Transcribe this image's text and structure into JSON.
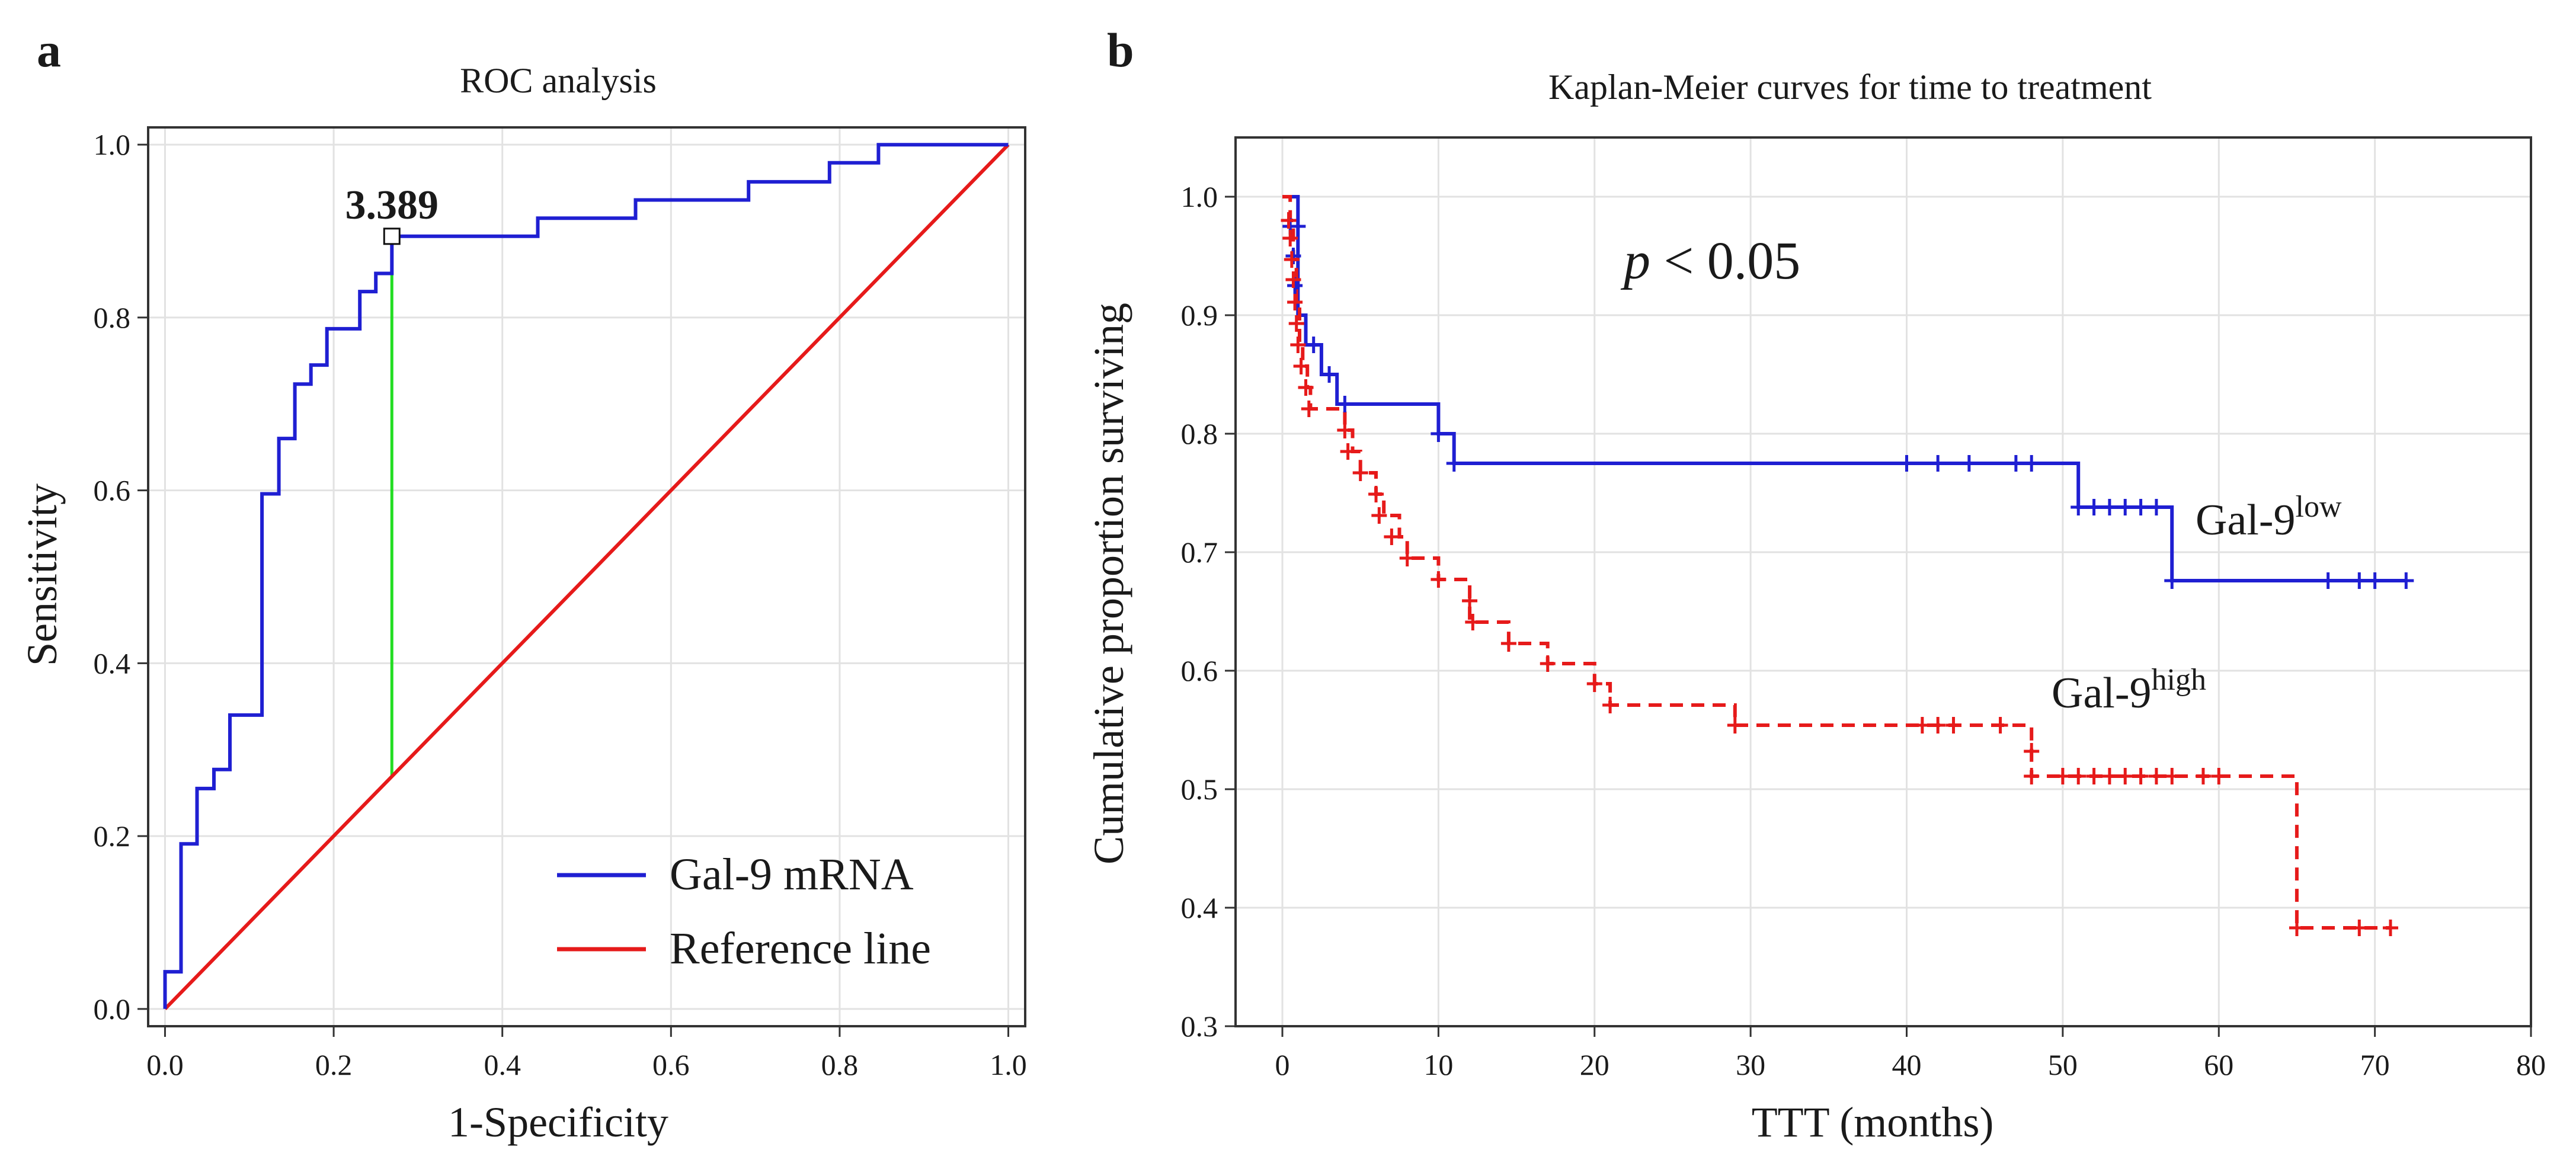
{
  "chart_data": [
    {
      "panel": "a",
      "type": "line",
      "title": "ROC analysis",
      "xlabel": "1-Specificity",
      "ylabel": "Sensitivity",
      "xlim": [
        -0.02,
        1.02
      ],
      "ylim": [
        -0.02,
        1.02
      ],
      "xticks": [
        "0.0",
        "0.2",
        "0.4",
        "0.6",
        "0.8",
        "1.0"
      ],
      "yticks": [
        "0.0",
        "0.2",
        "0.4",
        "0.6",
        "0.8",
        "1.0"
      ],
      "grid": true,
      "legend_position": "bottom-right",
      "series": [
        {
          "name": "Gal-9 mRNA",
          "color": "#1f1fd2",
          "style": "step",
          "x": [
            0.0,
            0.0,
            0.019,
            0.019,
            0.038,
            0.038,
            0.058,
            0.058,
            0.077,
            0.077,
            0.096,
            0.115,
            0.115,
            0.135,
            0.135,
            0.154,
            0.154,
            0.173,
            0.173,
            0.192,
            0.192,
            0.212,
            0.231,
            0.231,
            0.25,
            0.25,
            0.269,
            0.269,
            0.288,
            0.442,
            0.442,
            0.462,
            0.558,
            0.558,
            0.577,
            0.692,
            0.692,
            0.712,
            0.788,
            0.788,
            0.808,
            0.846,
            0.846,
            0.865,
            1.0
          ],
          "y": [
            0.0,
            0.043,
            0.043,
            0.191,
            0.191,
            0.255,
            0.255,
            0.277,
            0.277,
            0.34,
            0.34,
            0.34,
            0.596,
            0.596,
            0.66,
            0.66,
            0.723,
            0.723,
            0.745,
            0.745,
            0.787,
            0.787,
            0.787,
            0.83,
            0.83,
            0.851,
            0.851,
            0.894,
            0.894,
            0.894,
            0.915,
            0.915,
            0.915,
            0.936,
            0.936,
            0.936,
            0.957,
            0.957,
            0.957,
            0.979,
            0.979,
            0.979,
            1.0,
            1.0,
            1.0
          ]
        },
        {
          "name": "Reference line",
          "color": "#e61a1a",
          "style": "line",
          "x": [
            0.0,
            1.0
          ],
          "y": [
            0.0,
            1.0
          ]
        }
      ],
      "cutoff": {
        "label": "3.389",
        "x": 0.269,
        "y": 0.894,
        "y_reference": 0.269,
        "color": "#22dd22"
      }
    },
    {
      "panel": "b",
      "type": "line",
      "title": "Kaplan-Meier curves for time to treatment",
      "xlabel": "TTT (months)",
      "ylabel": "Cumulative proportion surviving",
      "xlim": [
        -3,
        80
      ],
      "ylim": [
        0.3,
        1.05
      ],
      "xticks": [
        "0",
        "10",
        "20",
        "30",
        "40",
        "50",
        "60",
        "70",
        "80"
      ],
      "yticks": [
        "0.3",
        "0.4",
        "0.5",
        "0.6",
        "0.7",
        "0.8",
        "0.9",
        "1.0"
      ],
      "grid": true,
      "annotation": {
        "p_symbol": "p",
        "p_text": " < 0.05"
      },
      "series": [
        {
          "name": "Gal-9 low",
          "label_main": "Gal-9",
          "label_sup": "low",
          "color": "#1f1fd2",
          "dash": "solid",
          "x": [
            0,
            1,
            1,
            1.5,
            1.5,
            2.5,
            2.5,
            3.5,
            3.5,
            10,
            10,
            11,
            11,
            51,
            51,
            57,
            57,
            72
          ],
          "y": [
            1.0,
            1.0,
            0.9,
            0.9,
            0.875,
            0.875,
            0.85,
            0.85,
            0.825,
            0.825,
            0.8,
            0.8,
            0.775,
            0.775,
            0.738,
            0.738,
            0.676,
            0.676
          ],
          "censor_x": [
            0.5,
            0.7,
            0.8,
            1.0,
            2.0,
            3.0,
            4.0,
            10.0,
            11.0,
            40,
            42,
            44,
            47,
            48,
            51,
            52,
            53,
            54,
            55,
            56,
            57,
            67,
            69,
            70,
            72
          ],
          "censor_y": [
            0.975,
            0.95,
            0.925,
            0.975,
            0.875,
            0.85,
            0.825,
            0.8,
            0.775,
            0.775,
            0.775,
            0.775,
            0.775,
            0.775,
            0.738,
            0.738,
            0.738,
            0.738,
            0.738,
            0.738,
            0.676,
            0.676,
            0.676,
            0.676,
            0.676
          ]
        },
        {
          "name": "Gal-9 high",
          "label_main": "Gal-9",
          "label_sup": "high",
          "color": "#e61a1a",
          "dash": "dashed",
          "x": [
            0,
            0.5,
            0.5,
            0.7,
            0.7,
            0.9,
            0.9,
            1.1,
            1.1,
            1.3,
            1.3,
            1.6,
            1.6,
            1.8,
            1.8,
            4,
            4,
            4.5,
            4.5,
            5,
            5,
            6,
            6,
            6.5,
            6.5,
            7.5,
            7.5,
            8,
            8,
            10,
            10,
            12,
            12,
            14.5,
            14.5,
            17,
            17,
            20,
            20,
            21,
            21,
            29,
            29,
            48,
            48,
            65,
            65,
            71
          ],
          "y": [
            1.0,
            1.0,
            0.98,
            0.98,
            0.947,
            0.947,
            0.911,
            0.911,
            0.875,
            0.875,
            0.857,
            0.857,
            0.839,
            0.839,
            0.821,
            0.821,
            0.803,
            0.803,
            0.785,
            0.785,
            0.767,
            0.767,
            0.749,
            0.749,
            0.731,
            0.731,
            0.713,
            0.713,
            0.695,
            0.695,
            0.677,
            0.677,
            0.641,
            0.641,
            0.623,
            0.623,
            0.606,
            0.606,
            0.589,
            0.589,
            0.571,
            0.571,
            0.554,
            0.554,
            0.511,
            0.511,
            0.383,
            0.383
          ],
          "censor_x": [
            0.4,
            0.5,
            0.6,
            0.7,
            0.8,
            0.9,
            1.0,
            1.2,
            1.5,
            1.7,
            4.0,
            4.2,
            5.0,
            6.0,
            6.2,
            7.0,
            8.0,
            10.0,
            12.0,
            12.2,
            14.5,
            17.0,
            20.0,
            21.0,
            29.0,
            41,
            42,
            43,
            46,
            48,
            48,
            50,
            51,
            52,
            53,
            54,
            55,
            56,
            57,
            59,
            60,
            65,
            69,
            71
          ],
          "censor_y": [
            0.98,
            0.965,
            0.947,
            0.93,
            0.911,
            0.893,
            0.875,
            0.857,
            0.839,
            0.821,
            0.803,
            0.785,
            0.767,
            0.749,
            0.731,
            0.713,
            0.695,
            0.677,
            0.659,
            0.641,
            0.623,
            0.606,
            0.589,
            0.571,
            0.554,
            0.554,
            0.554,
            0.554,
            0.554,
            0.532,
            0.511,
            0.511,
            0.511,
            0.511,
            0.511,
            0.511,
            0.511,
            0.511,
            0.511,
            0.511,
            0.511,
            0.383,
            0.383,
            0.383
          ]
        }
      ]
    }
  ]
}
